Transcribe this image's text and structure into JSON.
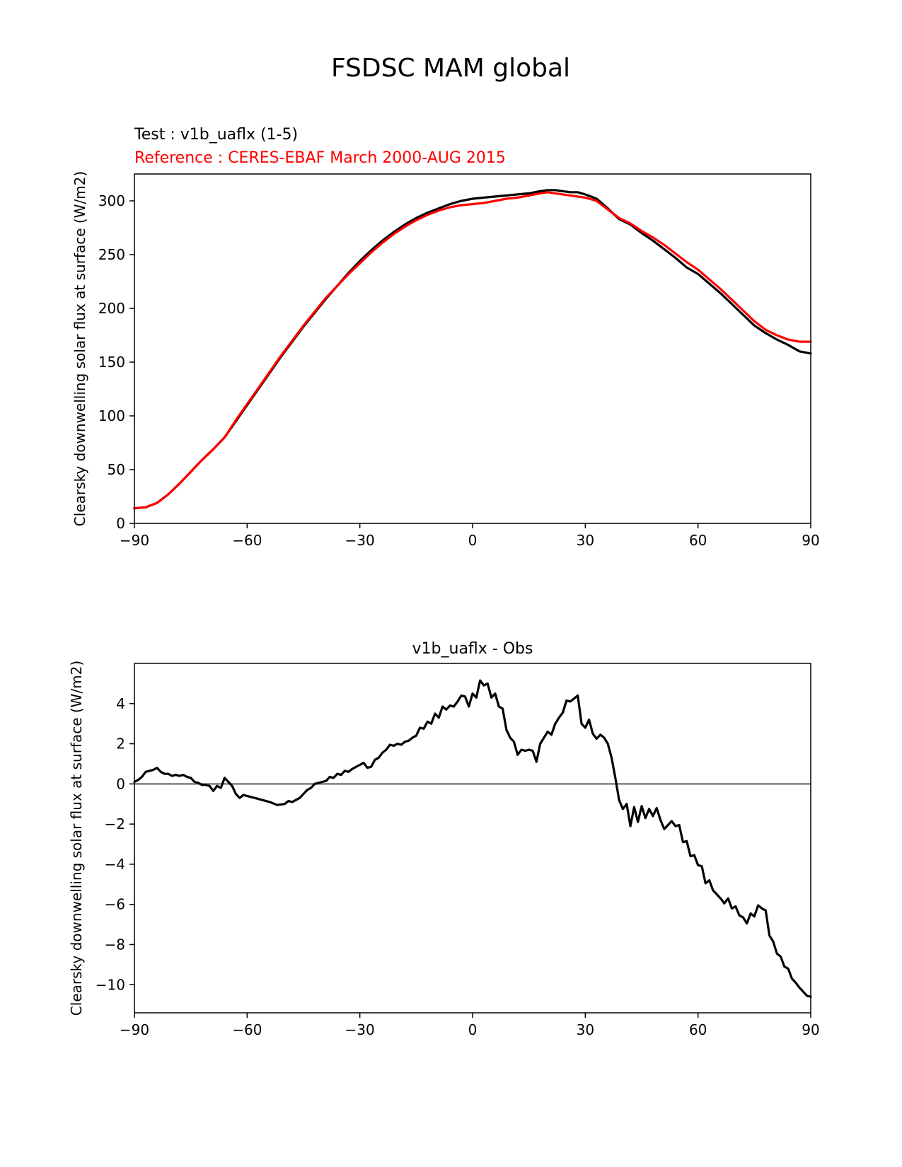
{
  "figure": {
    "title": "FSDSC MAM global"
  },
  "colors": {
    "test": "#000000",
    "reference": "#ff0000",
    "zero_line": "#808080"
  },
  "chart_data": [
    {
      "type": "line",
      "test_label": "Test : v1b_uaflx (1-5)",
      "reference_label": "Reference : CERES-EBAF March 2000-AUG 2015",
      "xlabel": "",
      "ylabel": "Clearsky downwelling solar flux at surface (W/m2)",
      "xlim": [
        -90,
        90
      ],
      "ylim": [
        0,
        325
      ],
      "xticks": [
        -90,
        -60,
        -30,
        0,
        30,
        60,
        90
      ],
      "xtick_labels": [
        "−90",
        "−60",
        "−30",
        "0",
        "30",
        "60",
        "90"
      ],
      "yticks": [
        0,
        50,
        100,
        150,
        200,
        250,
        300
      ],
      "ytick_labels": [
        "0",
        "50",
        "100",
        "150",
        "200",
        "250",
        "300"
      ],
      "series": [
        {
          "role": "test",
          "color": "#000000",
          "x": [
            -90,
            -87,
            -84,
            -81,
            -78,
            -75,
            -72,
            -69,
            -66,
            -63,
            -60,
            -57,
            -54,
            -51,
            -48,
            -45,
            -42,
            -39,
            -36,
            -33,
            -30,
            -27,
            -24,
            -21,
            -18,
            -15,
            -12,
            -9,
            -6,
            -3,
            0,
            3,
            6,
            9,
            12,
            15,
            18,
            20,
            22,
            24,
            26,
            28,
            30,
            33,
            36,
            39,
            42,
            45,
            48,
            51,
            54,
            57,
            60,
            63,
            66,
            69,
            72,
            75,
            78,
            81,
            84,
            87,
            90
          ],
          "y": [
            14,
            15,
            19,
            27,
            37,
            48,
            59,
            69,
            80,
            95,
            110,
            125,
            140,
            155,
            169,
            183,
            196,
            209,
            221,
            233,
            244,
            254,
            263,
            271,
            278,
            284,
            289,
            293,
            297,
            300,
            302,
            303,
            304,
            305,
            306,
            307,
            309,
            310,
            310,
            309,
            308,
            308,
            306,
            302,
            293,
            283,
            278,
            270,
            263,
            255,
            247,
            238,
            232,
            223,
            214,
            204,
            194,
            184,
            177,
            171,
            166,
            160,
            158
          ]
        },
        {
          "role": "reference",
          "color": "#ff0000",
          "x": [
            -90,
            -87,
            -84,
            -81,
            -78,
            -75,
            -72,
            -69,
            -66,
            -63,
            -60,
            -57,
            -54,
            -51,
            -48,
            -45,
            -42,
            -39,
            -36,
            -33,
            -30,
            -27,
            -24,
            -21,
            -18,
            -15,
            -12,
            -9,
            -6,
            -3,
            0,
            3,
            6,
            9,
            12,
            15,
            18,
            20,
            22,
            24,
            26,
            28,
            30,
            33,
            36,
            39,
            42,
            45,
            48,
            51,
            54,
            57,
            60,
            63,
            66,
            69,
            72,
            75,
            78,
            81,
            84,
            87,
            90
          ],
          "y": [
            14,
            15,
            19,
            27,
            37,
            48,
            59,
            69,
            80,
            96,
            111,
            126,
            141,
            156,
            170,
            184,
            197,
            210,
            221,
            232,
            242,
            252,
            261,
            269,
            276,
            282,
            287,
            291,
            294,
            296,
            297,
            298,
            300,
            302,
            303,
            305,
            307,
            308,
            307,
            306,
            305,
            304,
            303,
            300,
            292,
            284,
            279,
            272,
            266,
            259,
            251,
            243,
            236,
            227,
            218,
            208,
            198,
            188,
            180,
            175,
            171,
            169,
            169
          ]
        }
      ]
    },
    {
      "type": "line",
      "title": "v1b_uaflx - Obs",
      "xlabel": "",
      "ylabel": "Clearsky downwelling solar flux at surface (W/m2)",
      "xlim": [
        -90,
        90
      ],
      "ylim": [
        -11.4,
        6
      ],
      "xticks": [
        -90,
        -60,
        -30,
        0,
        30,
        60,
        90
      ],
      "xtick_labels": [
        "−90",
        "−60",
        "−30",
        "0",
        "30",
        "60",
        "90"
      ],
      "yticks": [
        -10,
        -8,
        -6,
        -4,
        -2,
        0,
        2,
        4
      ],
      "ytick_labels": [
        "−10",
        "−8",
        "−6",
        "−4",
        "−2",
        "0",
        "2",
        "4"
      ],
      "zero_line": 0,
      "series": [
        {
          "role": "difference",
          "color": "#000000",
          "x": [
            -90,
            -89,
            -88,
            -87,
            -86,
            -85,
            -84,
            -83,
            -82,
            -81,
            -80,
            -79,
            -78,
            -77,
            -76,
            -75,
            -74,
            -73,
            -72,
            -71,
            -70,
            -69,
            -68,
            -67,
            -66,
            -65,
            -64,
            -63,
            -62,
            -61,
            -60,
            -58,
            -56,
            -54,
            -52,
            -50,
            -49,
            -48,
            -47,
            -46,
            -45,
            -44,
            -43,
            -42,
            -41,
            -40,
            -39,
            -38,
            -37,
            -36,
            -35,
            -34,
            -33,
            -32,
            -31,
            -30,
            -29,
            -28,
            -27,
            -26,
            -25,
            -24,
            -23,
            -22,
            -21,
            -20,
            -19,
            -18,
            -17,
            -16,
            -15,
            -14,
            -13,
            -12,
            -11,
            -10,
            -9,
            -8,
            -7,
            -6,
            -5,
            -4,
            -3,
            -2,
            -1,
            0,
            1,
            2,
            3,
            4,
            5,
            6,
            7,
            8,
            9,
            10,
            11,
            12,
            13,
            14,
            15,
            16,
            17,
            18,
            19,
            20,
            21,
            22,
            23,
            24,
            25,
            26,
            27,
            28,
            29,
            30,
            31,
            32,
            33,
            34,
            35,
            36,
            37,
            38,
            39,
            40,
            41,
            42,
            43,
            44,
            45,
            46,
            47,
            48,
            49,
            50,
            51,
            52,
            53,
            54,
            55,
            56,
            57,
            58,
            59,
            60,
            61,
            62,
            63,
            64,
            65,
            66,
            67,
            68,
            69,
            70,
            71,
            72,
            73,
            74,
            75,
            76,
            77,
            78,
            79,
            80,
            81,
            82,
            83,
            84,
            85,
            86,
            87,
            88,
            89,
            90
          ],
          "y": [
            0.1,
            0.2,
            0.35,
            0.6,
            0.65,
            0.7,
            0.8,
            0.6,
            0.5,
            0.5,
            0.4,
            0.45,
            0.4,
            0.45,
            0.35,
            0.3,
            0.1,
            0.05,
            -0.05,
            -0.05,
            -0.1,
            -0.35,
            -0.1,
            -0.2,
            0.3,
            0.1,
            -0.1,
            -0.5,
            -0.7,
            -0.55,
            -0.6,
            -0.7,
            -0.8,
            -0.9,
            -1.05,
            -1.0,
            -0.85,
            -0.9,
            -0.8,
            -0.7,
            -0.5,
            -0.3,
            -0.2,
            0.0,
            0.05,
            0.1,
            0.15,
            0.35,
            0.3,
            0.5,
            0.45,
            0.65,
            0.6,
            0.75,
            0.85,
            0.95,
            1.05,
            0.8,
            0.85,
            1.2,
            1.3,
            1.55,
            1.7,
            1.95,
            1.9,
            2.0,
            1.95,
            2.1,
            2.15,
            2.3,
            2.4,
            2.8,
            2.75,
            3.1,
            3.0,
            3.5,
            3.3,
            3.85,
            3.7,
            3.9,
            3.85,
            4.1,
            4.4,
            4.35,
            3.85,
            4.5,
            4.3,
            5.15,
            4.9,
            5.0,
            4.3,
            4.5,
            3.85,
            3.75,
            2.7,
            2.3,
            2.1,
            1.45,
            1.7,
            1.65,
            1.7,
            1.65,
            1.1,
            2.0,
            2.3,
            2.6,
            2.45,
            3.0,
            3.3,
            3.55,
            4.15,
            4.1,
            4.25,
            4.4,
            3.0,
            2.8,
            3.2,
            2.5,
            2.25,
            2.45,
            2.3,
            2.0,
            1.3,
            0.3,
            -0.8,
            -1.25,
            -1.0,
            -2.1,
            -1.15,
            -1.9,
            -1.1,
            -1.7,
            -1.25,
            -1.6,
            -1.2,
            -1.8,
            -2.25,
            -2.05,
            -1.85,
            -2.1,
            -2.05,
            -2.9,
            -2.85,
            -3.6,
            -3.55,
            -4.05,
            -4.1,
            -4.95,
            -4.8,
            -5.3,
            -5.5,
            -5.7,
            -5.95,
            -5.7,
            -6.2,
            -6.1,
            -6.55,
            -6.65,
            -6.95,
            -6.45,
            -6.6,
            -6.05,
            -6.2,
            -6.3,
            -7.55,
            -7.85,
            -8.45,
            -8.6,
            -9.1,
            -9.2,
            -9.7,
            -9.9,
            -10.15,
            -10.35,
            -10.55,
            -10.6
          ]
        }
      ]
    }
  ]
}
